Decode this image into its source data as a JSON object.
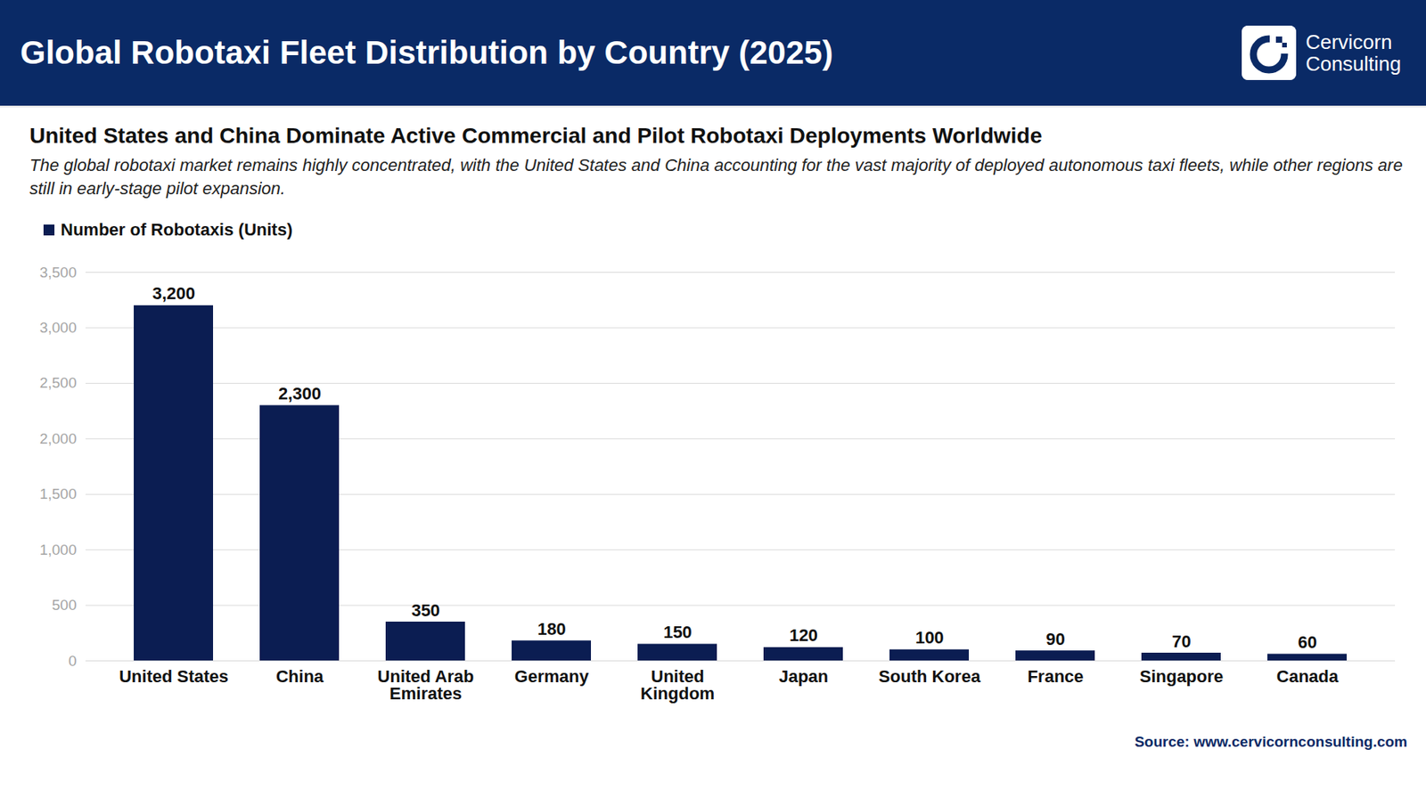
{
  "chart_data": {
    "type": "bar",
    "title": "Global Robotaxi Fleet Distribution by Country (2025)",
    "subtitle": "United States and China Dominate Active Commercial and Pilot Robotaxi Deployments Worldwide",
    "description": "The global robotaxi market remains highly concentrated, with the United States and China accounting for the vast majority of deployed autonomous taxi fleets, while other regions are still in early-stage pilot expansion.",
    "logo": [
      "Cervicorn",
      "Consulting"
    ],
    "source": "Source: www.cervicornconsulting.com",
    "categories": [
      "United States",
      "China",
      "United Arab Emirates",
      "Germany",
      "United Kingdom",
      "Japan",
      "South Korea",
      "France",
      "Singapore",
      "Canada"
    ],
    "series": [
      {
        "name": "Number of Robotaxis (Units)",
        "color": "#0b1d52",
        "values": [
          3200,
          2300,
          350,
          180,
          150,
          120,
          100,
          90,
          70,
          60
        ],
        "value_labels": [
          "3,200",
          "2,300",
          "350",
          "180",
          "150",
          "120",
          "100",
          "90",
          "70",
          "60"
        ]
      }
    ],
    "ylim": [
      0,
      3500
    ],
    "yticks": [
      0,
      500,
      {
        "value": 1000,
        "label": "1,000"
      },
      {
        "value": 1500,
        "label": "1,500"
      },
      {
        "value": 2000,
        "label": "2,000"
      },
      {
        "value": 2500,
        "label": "2,500"
      },
      {
        "value": 3000,
        "label": "3,000"
      },
      {
        "value": 3500,
        "label": "3,500"
      }
    ],
    "grid": true,
    "legend": "top-left",
    "data_labels": true
  }
}
